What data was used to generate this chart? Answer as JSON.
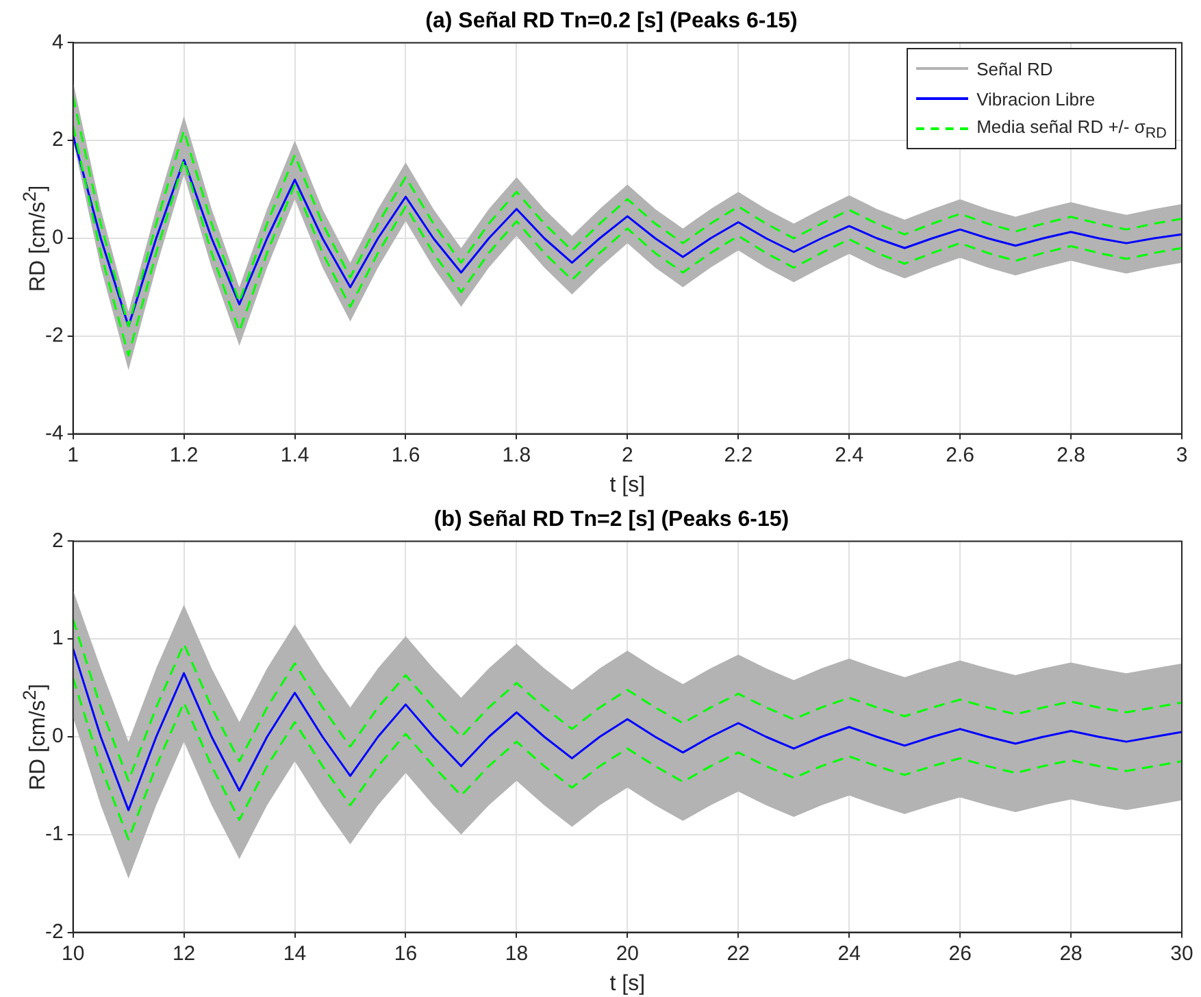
{
  "chart_data": [
    {
      "type": "line",
      "title": "(a) Señal RD Tn=0.2 [s] (Peaks 6-15)",
      "xlabel": "t [s]",
      "ylabel": "RD [cm/s$^{2}$]",
      "xlim": [
        1,
        3
      ],
      "xticks": [
        1,
        1.2,
        1.4,
        1.6,
        1.8,
        2,
        2.2,
        2.4,
        2.6,
        2.8,
        3
      ],
      "ylim": [
        -4,
        4
      ],
      "yticks": [
        -4,
        -2,
        0,
        2,
        4
      ],
      "grid": true,
      "legend": "top right",
      "x": [
        1,
        1.05,
        1.1,
        1.15,
        1.2,
        1.25,
        1.3,
        1.35,
        1.4,
        1.45,
        1.5,
        1.55,
        1.6,
        1.65,
        1.7,
        1.75,
        1.8,
        1.85,
        1.9,
        1.95,
        2,
        2.05,
        2.1,
        2.15,
        2.2,
        2.25,
        2.3,
        2.35,
        2.4,
        2.45,
        2.5,
        2.55,
        2.6,
        2.65,
        2.7,
        2.75,
        2.8,
        2.85,
        2.9,
        2.95,
        3
      ],
      "series": [
        {
          "name": "Señal RD",
          "color": "#b3b3b3",
          "values": [
            null,
            null,
            null,
            null,
            null,
            null,
            null,
            null,
            null,
            null,
            null,
            null,
            null,
            null,
            null,
            null,
            null,
            null,
            null,
            null,
            null,
            null,
            null,
            null,
            null,
            null,
            null,
            null,
            null,
            null,
            null,
            null,
            null,
            null,
            null,
            null,
            null,
            null,
            null,
            null,
            null
          ],
          "upper": [
            3.2,
            0.6,
            -1.5,
            0.6,
            2.5,
            0.6,
            -1.0,
            0.6,
            2.0,
            0.6,
            -0.5,
            0.6,
            1.55,
            0.6,
            -0.2,
            0.6,
            1.25,
            0.6,
            0.05,
            0.6,
            1.1,
            0.6,
            0.2,
            0.6,
            0.95,
            0.6,
            0.3,
            0.6,
            0.88,
            0.6,
            0.38,
            0.6,
            0.8,
            0.6,
            0.44,
            0.6,
            0.74,
            0.6,
            0.48,
            0.6,
            0.7
          ],
          "lower": [
            2.0,
            -0.6,
            -2.7,
            -0.6,
            1.3,
            -0.6,
            -2.2,
            -0.6,
            0.8,
            -0.6,
            -1.7,
            -0.6,
            0.35,
            -0.6,
            -1.4,
            -0.6,
            0.05,
            -0.6,
            -1.15,
            -0.6,
            -0.1,
            -0.6,
            -1.0,
            -0.6,
            -0.25,
            -0.6,
            -0.9,
            -0.6,
            -0.32,
            -0.6,
            -0.82,
            -0.6,
            -0.4,
            -0.6,
            -0.76,
            -0.6,
            -0.46,
            -0.6,
            -0.72,
            -0.6,
            -0.5
          ]
        },
        {
          "name": "Vibracion Libre",
          "color": "#0000ff",
          "line_style": "solid",
          "values": [
            2.1,
            0,
            -1.8,
            0,
            1.6,
            0,
            -1.35,
            0,
            1.2,
            0,
            -1.0,
            0,
            0.85,
            0,
            -0.7,
            0,
            0.6,
            0,
            -0.5,
            0,
            0.45,
            0,
            -0.38,
            0,
            0.33,
            0,
            -0.28,
            0,
            0.25,
            0,
            -0.2,
            0,
            0.18,
            0,
            -0.15,
            0,
            0.13,
            0,
            -0.1,
            0,
            0.08
          ]
        },
        {
          "name": "Media señal RD +/- σ$_{RD}$",
          "color": "#00ff00",
          "line_style": "dashed",
          "values": [
            2.9,
            0.3,
            -1.8,
            0.3,
            2.2,
            0.3,
            -1.3,
            0.3,
            1.7,
            0.3,
            -0.8,
            0.3,
            1.25,
            0.3,
            -0.5,
            0.3,
            0.95,
            0.3,
            -0.25,
            0.3,
            0.8,
            0.3,
            -0.1,
            0.3,
            0.65,
            0.3,
            0.0,
            0.3,
            0.58,
            0.3,
            0.08,
            0.3,
            0.5,
            0.3,
            0.14,
            0.3,
            0.44,
            0.3,
            0.18,
            0.3,
            0.4
          ]
        },
        {
          "color": "#00ff00",
          "line_style": "dashed",
          "values": [
            2.3,
            -0.3,
            -2.4,
            -0.3,
            1.6,
            -0.3,
            -1.9,
            -0.3,
            1.1,
            -0.3,
            -1.4,
            -0.3,
            0.65,
            -0.3,
            -1.1,
            -0.3,
            0.35,
            -0.3,
            -0.85,
            -0.3,
            0.2,
            -0.3,
            -0.7,
            -0.3,
            0.05,
            -0.3,
            -0.6,
            -0.3,
            -0.02,
            -0.3,
            -0.52,
            -0.3,
            -0.1,
            -0.3,
            -0.46,
            -0.3,
            -0.16,
            -0.3,
            -0.42,
            -0.3,
            -0.2
          ]
        }
      ]
    },
    {
      "type": "line",
      "title": "(b) Señal RD Tn=2 [s] (Peaks 6-15)",
      "xlabel": "t [s]",
      "ylabel": "RD [cm/s$^{2}$]",
      "xlim": [
        10,
        30
      ],
      "xticks": [
        10,
        12,
        14,
        16,
        18,
        20,
        22,
        24,
        26,
        28,
        30
      ],
      "ylim": [
        -2,
        2
      ],
      "yticks": [
        -2,
        -1,
        0,
        1,
        2
      ],
      "grid": true,
      "x": [
        10,
        10.5,
        11,
        11.5,
        12,
        12.5,
        13,
        13.5,
        14,
        14.5,
        15,
        15.5,
        16,
        16.5,
        17,
        17.5,
        18,
        18.5,
        19,
        19.5,
        20,
        20.5,
        21,
        21.5,
        22,
        22.5,
        23,
        23.5,
        24,
        24.5,
        25,
        25.5,
        26,
        26.5,
        27,
        27.5,
        28,
        28.5,
        29,
        29.5,
        30
      ],
      "series": [
        {
          "color": "#b3b3b3",
          "values": [
            null,
            null,
            null,
            null,
            null,
            null,
            null,
            null,
            null,
            null,
            null,
            null,
            null,
            null,
            null,
            null,
            null,
            null,
            null,
            null,
            null,
            null,
            null,
            null,
            null,
            null,
            null,
            null,
            null,
            null,
            null,
            null,
            null,
            null,
            null,
            null,
            null,
            null,
            null,
            null,
            null
          ],
          "upper": [
            1.5,
            0.7,
            -0.05,
            0.7,
            1.35,
            0.7,
            0.15,
            0.7,
            1.15,
            0.7,
            0.3,
            0.7,
            1.03,
            0.7,
            0.4,
            0.7,
            0.95,
            0.7,
            0.48,
            0.7,
            0.88,
            0.7,
            0.54,
            0.7,
            0.84,
            0.7,
            0.58,
            0.7,
            0.8,
            0.7,
            0.61,
            0.7,
            0.78,
            0.7,
            0.63,
            0.7,
            0.76,
            0.7,
            0.65,
            0.7,
            0.75
          ],
          "lower": [
            0.2,
            -0.7,
            -1.45,
            -0.7,
            -0.05,
            -0.7,
            -1.25,
            -0.7,
            -0.25,
            -0.7,
            -1.1,
            -0.7,
            -0.37,
            -0.7,
            -1.0,
            -0.7,
            -0.45,
            -0.7,
            -0.92,
            -0.7,
            -0.52,
            -0.7,
            -0.86,
            -0.7,
            -0.56,
            -0.7,
            -0.82,
            -0.7,
            -0.6,
            -0.7,
            -0.79,
            -0.7,
            -0.62,
            -0.7,
            -0.77,
            -0.7,
            -0.64,
            -0.7,
            -0.75,
            -0.7,
            -0.65
          ]
        },
        {
          "color": "#0000ff",
          "line_style": "solid",
          "values": [
            0.9,
            0,
            -0.75,
            0,
            0.65,
            0,
            -0.55,
            0,
            0.45,
            0,
            -0.4,
            0,
            0.33,
            0,
            -0.3,
            0,
            0.25,
            0,
            -0.22,
            0,
            0.18,
            0,
            -0.16,
            0,
            0.14,
            0,
            -0.12,
            0,
            0.1,
            0,
            -0.09,
            0,
            0.08,
            0,
            -0.07,
            0,
            0.06,
            0,
            -0.05,
            0,
            0.05
          ]
        },
        {
          "color": "#00ff00",
          "line_style": "dashed",
          "values": [
            1.2,
            0.3,
            -0.45,
            0.3,
            0.95,
            0.3,
            -0.25,
            0.3,
            0.75,
            0.3,
            -0.1,
            0.3,
            0.63,
            0.3,
            0.0,
            0.3,
            0.55,
            0.3,
            0.08,
            0.3,
            0.48,
            0.3,
            0.14,
            0.3,
            0.44,
            0.3,
            0.18,
            0.3,
            0.4,
            0.3,
            0.21,
            0.3,
            0.38,
            0.3,
            0.23,
            0.3,
            0.36,
            0.3,
            0.25,
            0.3,
            0.35
          ]
        },
        {
          "color": "#00ff00",
          "line_style": "dashed",
          "values": [
            0.6,
            -0.3,
            -1.05,
            -0.3,
            0.35,
            -0.3,
            -0.85,
            -0.3,
            0.15,
            -0.3,
            -0.7,
            -0.3,
            0.03,
            -0.3,
            -0.6,
            -0.3,
            -0.05,
            -0.3,
            -0.52,
            -0.3,
            -0.12,
            -0.3,
            -0.46,
            -0.3,
            -0.16,
            -0.3,
            -0.42,
            -0.3,
            -0.2,
            -0.3,
            -0.39,
            -0.3,
            -0.22,
            -0.3,
            -0.37,
            -0.3,
            -0.24,
            -0.3,
            -0.35,
            -0.3,
            -0.25
          ]
        }
      ]
    }
  ]
}
